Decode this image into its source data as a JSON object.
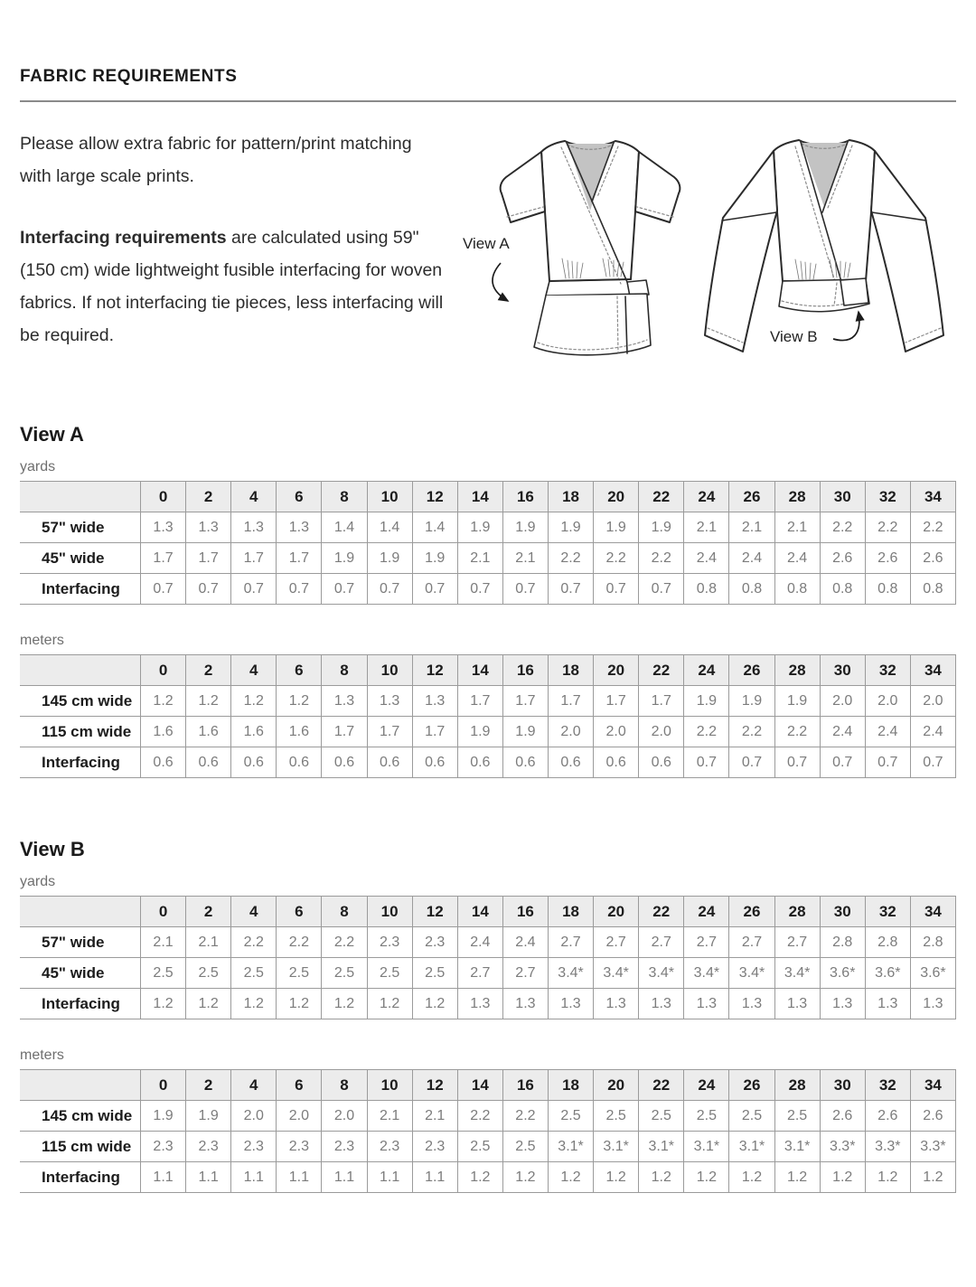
{
  "page": {
    "title": "FABRIC REQUIREMENTS"
  },
  "intro": {
    "p1": "Please allow extra fabric for pattern/print matching with large scale prints.",
    "p2_bold": "Interfacing requirements",
    "p2_rest": " are calculated using 59\" (150 cm) wide lightweight fusible interfacing for woven fabrics. If not interfacing tie pieces, less interfacing will be required."
  },
  "illustrations": {
    "view_a_label": "View A",
    "view_b_label": "View B"
  },
  "sizes": [
    "0",
    "2",
    "4",
    "6",
    "8",
    "10",
    "12",
    "14",
    "16",
    "18",
    "20",
    "22",
    "24",
    "26",
    "28",
    "30",
    "32",
    "34"
  ],
  "views": [
    {
      "name": "View A",
      "tables": [
        {
          "unit": "yards",
          "rows": [
            {
              "label": "57\" wide",
              "values": [
                "1.3",
                "1.3",
                "1.3",
                "1.3",
                "1.4",
                "1.4",
                "1.4",
                "1.9",
                "1.9",
                "1.9",
                "1.9",
                "1.9",
                "2.1",
                "2.1",
                "2.1",
                "2.2",
                "2.2",
                "2.2"
              ]
            },
            {
              "label": "45\" wide",
              "values": [
                "1.7",
                "1.7",
                "1.7",
                "1.7",
                "1.9",
                "1.9",
                "1.9",
                "2.1",
                "2.1",
                "2.2",
                "2.2",
                "2.2",
                "2.4",
                "2.4",
                "2.4",
                "2.6",
                "2.6",
                "2.6"
              ]
            },
            {
              "label": "Interfacing",
              "values": [
                "0.7",
                "0.7",
                "0.7",
                "0.7",
                "0.7",
                "0.7",
                "0.7",
                "0.7",
                "0.7",
                "0.7",
                "0.7",
                "0.7",
                "0.8",
                "0.8",
                "0.8",
                "0.8",
                "0.8",
                "0.8"
              ]
            }
          ]
        },
        {
          "unit": "meters",
          "rows": [
            {
              "label": "145 cm wide",
              "values": [
                "1.2",
                "1.2",
                "1.2",
                "1.2",
                "1.3",
                "1.3",
                "1.3",
                "1.7",
                "1.7",
                "1.7",
                "1.7",
                "1.7",
                "1.9",
                "1.9",
                "1.9",
                "2.0",
                "2.0",
                "2.0"
              ]
            },
            {
              "label": "115 cm wide",
              "values": [
                "1.6",
                "1.6",
                "1.6",
                "1.6",
                "1.7",
                "1.7",
                "1.7",
                "1.9",
                "1.9",
                "2.0",
                "2.0",
                "2.0",
                "2.2",
                "2.2",
                "2.2",
                "2.4",
                "2.4",
                "2.4"
              ]
            },
            {
              "label": "Interfacing",
              "values": [
                "0.6",
                "0.6",
                "0.6",
                "0.6",
                "0.6",
                "0.6",
                "0.6",
                "0.6",
                "0.6",
                "0.6",
                "0.6",
                "0.6",
                "0.7",
                "0.7",
                "0.7",
                "0.7",
                "0.7",
                "0.7"
              ]
            }
          ]
        }
      ]
    },
    {
      "name": "View B",
      "tables": [
        {
          "unit": "yards",
          "rows": [
            {
              "label": "57\" wide",
              "values": [
                "2.1",
                "2.1",
                "2.2",
                "2.2",
                "2.2",
                "2.3",
                "2.3",
                "2.4",
                "2.4",
                "2.7",
                "2.7",
                "2.7",
                "2.7",
                "2.7",
                "2.7",
                "2.8",
                "2.8",
                "2.8"
              ]
            },
            {
              "label": "45\" wide",
              "values": [
                "2.5",
                "2.5",
                "2.5",
                "2.5",
                "2.5",
                "2.5",
                "2.5",
                "2.7",
                "2.7",
                "3.4*",
                "3.4*",
                "3.4*",
                "3.4*",
                "3.4*",
                "3.4*",
                "3.6*",
                "3.6*",
                "3.6*"
              ]
            },
            {
              "label": "Interfacing",
              "values": [
                "1.2",
                "1.2",
                "1.2",
                "1.2",
                "1.2",
                "1.2",
                "1.2",
                "1.3",
                "1.3",
                "1.3",
                "1.3",
                "1.3",
                "1.3",
                "1.3",
                "1.3",
                "1.3",
                "1.3",
                "1.3"
              ]
            }
          ]
        },
        {
          "unit": "meters",
          "rows": [
            {
              "label": "145 cm wide",
              "values": [
                "1.9",
                "1.9",
                "2.0",
                "2.0",
                "2.0",
                "2.1",
                "2.1",
                "2.2",
                "2.2",
                "2.5",
                "2.5",
                "2.5",
                "2.5",
                "2.5",
                "2.5",
                "2.6",
                "2.6",
                "2.6"
              ]
            },
            {
              "label": "115 cm wide",
              "values": [
                "2.3",
                "2.3",
                "2.3",
                "2.3",
                "2.3",
                "2.3",
                "2.3",
                "2.5",
                "2.5",
                "3.1*",
                "3.1*",
                "3.1*",
                "3.1*",
                "3.1*",
                "3.1*",
                "3.3*",
                "3.3*",
                "3.3*"
              ]
            },
            {
              "label": "Interfacing",
              "values": [
                "1.1",
                "1.1",
                "1.1",
                "1.1",
                "1.1",
                "1.1",
                "1.1",
                "1.2",
                "1.2",
                "1.2",
                "1.2",
                "1.2",
                "1.2",
                "1.2",
                "1.2",
                "1.2",
                "1.2",
                "1.2"
              ]
            }
          ]
        }
      ]
    }
  ]
}
